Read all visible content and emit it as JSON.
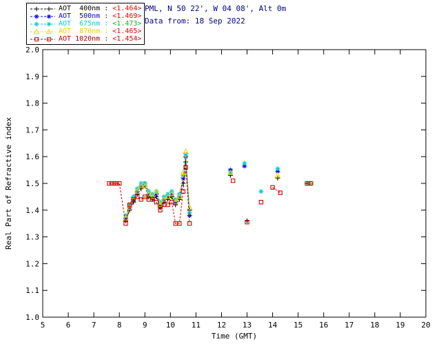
{
  "header": {
    "site_line": "PML, N 50 22', W 04 08', Alt 0m",
    "date_line": "Data from: 18 Sep 2022",
    "text_color": "#000080"
  },
  "legend": {
    "rows": [
      {
        "label": "AOT  400nm",
        "sep": " : ",
        "value": "<1.464>",
        "label_color": "#000000",
        "value_color": "#ee0000",
        "line_color": "#000000",
        "marker": "plus"
      },
      {
        "label": "AOT  500nm",
        "sep": " : ",
        "value": "<1.469>",
        "label_color": "#0000ee",
        "value_color": "#ee0000",
        "line_color": "#0000ee",
        "marker": "asterisk"
      },
      {
        "label": "AOT  675nm",
        "sep": " : ",
        "value": "<1.473>",
        "label_color": "#00cccc",
        "value_color": "#00bb33",
        "line_color": "#00cccc",
        "marker": "asterisk"
      },
      {
        "label": "AOT  870nm",
        "sep": " : ",
        "value": "<1.465>",
        "label_color": "#eecc00",
        "value_color": "#ee0000",
        "line_color": "#eedd00",
        "marker": "triangle"
      },
      {
        "label": "AOT 1020nm",
        "sep": " : ",
        "value": "<1.454>",
        "label_color": "#aa0000",
        "value_color": "#ee0000",
        "line_color": "#cc0000",
        "marker": "square"
      }
    ]
  },
  "chart_data": {
    "type": "line",
    "title": "",
    "xlabel": "Time (GMT)",
    "ylabel": "Real Part of Refractive index",
    "xlim": [
      5,
      20
    ],
    "ylim": [
      1.0,
      2.0
    ],
    "xticks": [
      5,
      6,
      7,
      8,
      9,
      10,
      11,
      12,
      13,
      14,
      15,
      16,
      17,
      18,
      19,
      20
    ],
    "yticks": [
      1.0,
      1.1,
      1.2,
      1.3,
      1.4,
      1.5,
      1.6,
      1.7,
      1.8,
      1.9,
      2.0
    ],
    "grid": false,
    "legend_position": "top-left",
    "series": [
      {
        "name": "AOT 400nm",
        "mean": 1.464,
        "color": "#000000",
        "marker": "plus",
        "segments": [
          [
            [
              8.25,
              1.36
            ],
            [
              8.4,
              1.4
            ],
            [
              8.55,
              1.43
            ],
            [
              8.7,
              1.46
            ],
            [
              8.85,
              1.48
            ],
            [
              9.0,
              1.49
            ],
            [
              9.15,
              1.45
            ],
            [
              9.3,
              1.44
            ],
            [
              9.45,
              1.45
            ],
            [
              9.6,
              1.41
            ],
            [
              9.75,
              1.43
            ],
            [
              9.9,
              1.44
            ],
            [
              10.05,
              1.45
            ],
            [
              10.2,
              1.42
            ],
            [
              10.35,
              1.44
            ],
            [
              10.5,
              1.5
            ],
            [
              10.6,
              1.58
            ],
            [
              10.75,
              1.4
            ]
          ],
          [
            [
              12.35,
              1.53
            ]
          ],
          [
            [
              13.0,
              1.36
            ]
          ],
          [
            [
              14.2,
              1.52
            ]
          ],
          [
            [
              15.35,
              1.5
            ],
            [
              15.5,
              1.5
            ]
          ]
        ]
      },
      {
        "name": "AOT 500nm",
        "mean": 1.469,
        "color": "#0000ee",
        "marker": "asterisk",
        "segments": [
          [
            [
              8.25,
              1.37
            ],
            [
              8.4,
              1.41
            ],
            [
              8.55,
              1.44
            ],
            [
              8.7,
              1.47
            ],
            [
              8.85,
              1.49
            ],
            [
              9.0,
              1.5
            ],
            [
              9.15,
              1.46
            ],
            [
              9.3,
              1.45
            ],
            [
              9.45,
              1.46
            ],
            [
              9.6,
              1.42
            ],
            [
              9.75,
              1.44
            ],
            [
              9.9,
              1.45
            ],
            [
              10.05,
              1.46
            ],
            [
              10.2,
              1.43
            ],
            [
              10.35,
              1.45
            ],
            [
              10.5,
              1.52
            ],
            [
              10.6,
              1.6
            ],
            [
              10.75,
              1.38
            ]
          ],
          [
            [
              12.35,
              1.55
            ]
          ],
          [
            [
              12.9,
              1.565
            ]
          ],
          [
            [
              14.2,
              1.545
            ]
          ],
          [
            [
              15.45,
              1.5
            ]
          ]
        ]
      },
      {
        "name": "AOT 675nm",
        "mean": 1.473,
        "color": "#00cccc",
        "marker": "asterisk",
        "segments": [
          [
            [
              8.25,
              1.38
            ],
            [
              8.4,
              1.42
            ],
            [
              8.55,
              1.45
            ],
            [
              8.7,
              1.48
            ],
            [
              8.85,
              1.5
            ],
            [
              9.0,
              1.5
            ],
            [
              9.15,
              1.47
            ],
            [
              9.3,
              1.46
            ],
            [
              9.45,
              1.47
            ],
            [
              9.6,
              1.43
            ],
            [
              9.75,
              1.45
            ],
            [
              9.9,
              1.46
            ],
            [
              10.05,
              1.47
            ],
            [
              10.2,
              1.44
            ],
            [
              10.35,
              1.46
            ],
            [
              10.5,
              1.53
            ],
            [
              10.6,
              1.61
            ],
            [
              10.75,
              1.39
            ]
          ],
          [
            [
              12.35,
              1.54
            ]
          ],
          [
            [
              12.9,
              1.575
            ]
          ],
          [
            [
              13.55,
              1.47
            ]
          ],
          [
            [
              14.2,
              1.555
            ]
          ],
          [
            [
              15.45,
              1.5
            ]
          ]
        ]
      },
      {
        "name": "AOT 870nm",
        "mean": 1.465,
        "color": "#eedd00",
        "marker": "triangle",
        "segments": [
          [
            [
              8.25,
              1.37
            ],
            [
              8.4,
              1.41
            ],
            [
              8.55,
              1.44
            ],
            [
              8.7,
              1.47
            ],
            [
              8.85,
              1.49
            ],
            [
              9.0,
              1.49
            ],
            [
              9.15,
              1.46
            ],
            [
              9.3,
              1.45
            ],
            [
              9.45,
              1.47
            ],
            [
              9.6,
              1.42
            ],
            [
              9.75,
              1.44
            ],
            [
              9.9,
              1.45
            ],
            [
              10.05,
              1.46
            ],
            [
              10.2,
              1.43
            ],
            [
              10.35,
              1.45
            ],
            [
              10.5,
              1.54
            ],
            [
              10.6,
              1.62
            ],
            [
              10.75,
              1.41
            ]
          ],
          [
            [
              12.35,
              1.54
            ]
          ],
          [
            [
              14.2,
              1.53
            ]
          ],
          [
            [
              15.45,
              1.5
            ]
          ]
        ]
      },
      {
        "name": "AOT 1020nm",
        "mean": 1.454,
        "color": "#cc0000",
        "marker": "square",
        "segments": [
          [
            [
              7.6,
              1.5
            ],
            [
              7.7,
              1.5
            ],
            [
              7.8,
              1.5
            ],
            [
              7.9,
              1.5
            ],
            [
              8.0,
              1.5
            ],
            [
              8.25,
              1.35
            ],
            [
              8.4,
              1.42
            ],
            [
              8.55,
              1.44
            ],
            [
              8.7,
              1.45
            ],
            [
              8.85,
              1.44
            ],
            [
              9.0,
              1.45
            ],
            [
              9.15,
              1.44
            ],
            [
              9.3,
              1.44
            ],
            [
              9.45,
              1.43
            ],
            [
              9.6,
              1.4
            ],
            [
              9.75,
              1.42
            ],
            [
              9.9,
              1.42
            ],
            [
              10.05,
              1.43
            ],
            [
              10.2,
              1.35
            ],
            [
              10.35,
              1.35
            ],
            [
              10.5,
              1.47
            ],
            [
              10.6,
              1.56
            ],
            [
              10.75,
              1.35
            ]
          ],
          [
            [
              12.45,
              1.51
            ]
          ],
          [
            [
              13.0,
              1.355
            ]
          ],
          [
            [
              13.55,
              1.43
            ]
          ],
          [
            [
              14.0,
              1.485
            ],
            [
              14.3,
              1.465
            ]
          ],
          [
            [
              15.35,
              1.5
            ],
            [
              15.5,
              1.5
            ]
          ]
        ]
      }
    ]
  }
}
